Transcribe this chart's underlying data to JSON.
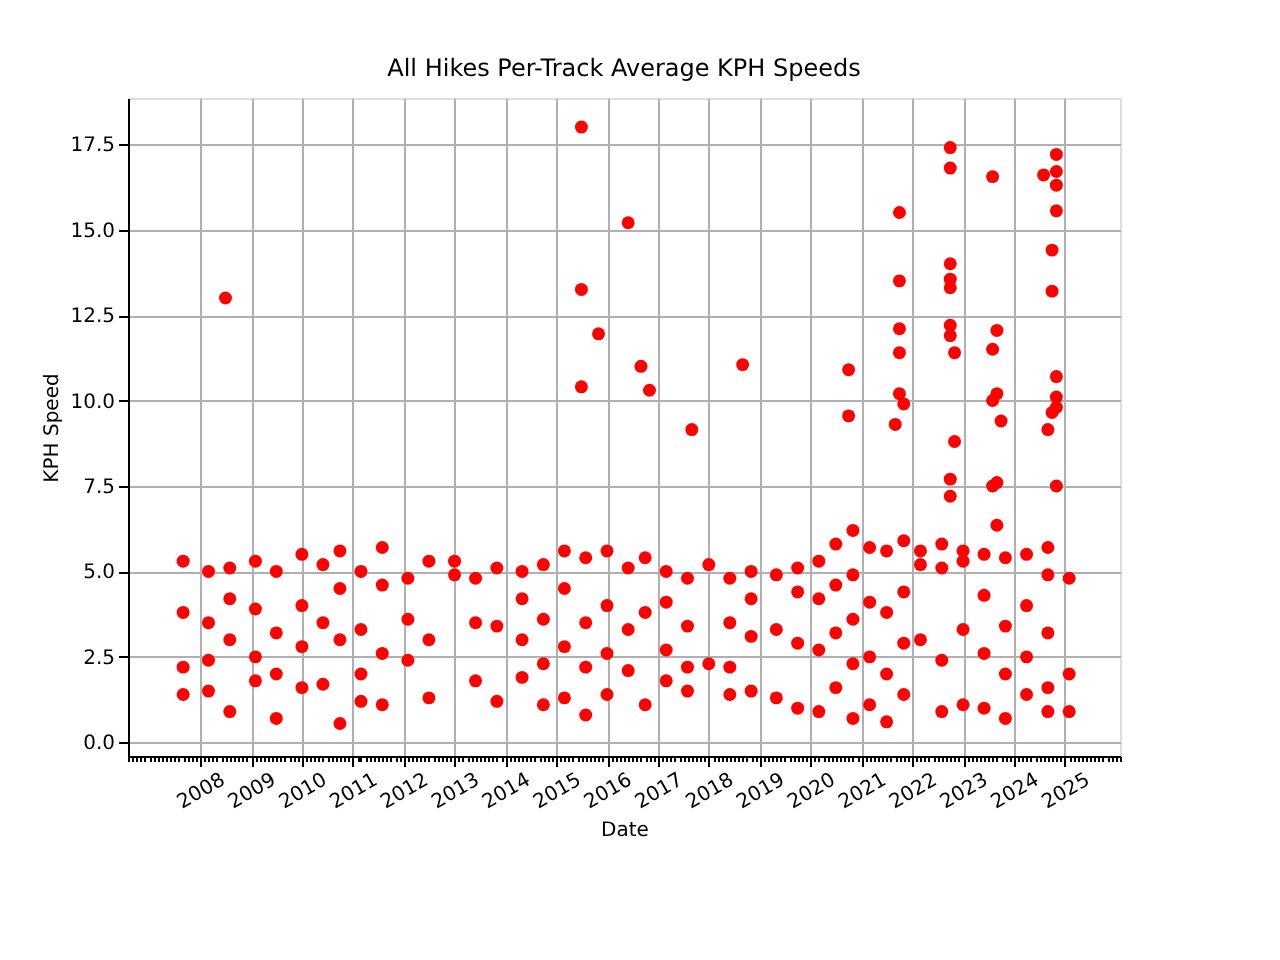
{
  "chart_data": {
    "type": "scatter",
    "title": "All Hikes Per-Track Average KPH Speeds",
    "xlabel": "Date",
    "ylabel": "KPH Speed",
    "series": [
      {
        "color": "#ff0000",
        "marker": "circle",
        "x": [
          "2007-09",
          "2007-09",
          "2007-09",
          "2007-09",
          "2008-03",
          "2008-03",
          "2008-03",
          "2008-03",
          "2008-08",
          "2008-08",
          "2008-08",
          "2008-08",
          "2009-02",
          "2009-02",
          "2009-02",
          "2009-02",
          "2009-07",
          "2009-07",
          "2009-07",
          "2009-07",
          "2010-01",
          "2010-01",
          "2010-01",
          "2010-01",
          "2010-06",
          "2010-06",
          "2010-06",
          "2010-10",
          "2010-10",
          "2010-10",
          "2010-10",
          "2011-03",
          "2011-03",
          "2011-03",
          "2011-03",
          "2011-08",
          "2011-08",
          "2011-08",
          "2011-08",
          "2012-02",
          "2012-02",
          "2012-02",
          "2012-07",
          "2012-07",
          "2012-07",
          "2013-01",
          "2013-01",
          "2013-06",
          "2013-06",
          "2013-06",
          "2013-11",
          "2013-11",
          "2013-11",
          "2014-05",
          "2014-05",
          "2014-05",
          "2014-05",
          "2014-10",
          "2014-10",
          "2014-10",
          "2014-10",
          "2015-03",
          "2015-03",
          "2015-03",
          "2015-03",
          "2015-08",
          "2015-08",
          "2015-08",
          "2015-08",
          "2016-01",
          "2016-01",
          "2016-01",
          "2016-01",
          "2016-06",
          "2016-06",
          "2016-06",
          "2016-10",
          "2016-10",
          "2016-10",
          "2017-03",
          "2017-03",
          "2017-03",
          "2017-03",
          "2017-08",
          "2017-08",
          "2017-08",
          "2017-08",
          "2018-01",
          "2018-01",
          "2018-06",
          "2018-06",
          "2018-06",
          "2018-06",
          "2018-11",
          "2018-11",
          "2018-11",
          "2018-11",
          "2019-05",
          "2019-05",
          "2019-05",
          "2019-10",
          "2019-10",
          "2019-10",
          "2019-10",
          "2020-03",
          "2020-03",
          "2020-03",
          "2020-03",
          "2020-07",
          "2020-07",
          "2020-07",
          "2020-07",
          "2020-11",
          "2020-11",
          "2020-11",
          "2020-11",
          "2020-11",
          "2021-03",
          "2021-03",
          "2021-03",
          "2021-03",
          "2021-07",
          "2021-07",
          "2021-07",
          "2021-07",
          "2021-11",
          "2021-11",
          "2021-11",
          "2021-11",
          "2022-03",
          "2022-03",
          "2022-03",
          "2022-08",
          "2022-08",
          "2022-08",
          "2022-08",
          "2023-01",
          "2023-01",
          "2023-01",
          "2023-01",
          "2023-06",
          "2023-06",
          "2023-06",
          "2023-06",
          "2023-11",
          "2023-11",
          "2023-11",
          "2023-11",
          "2024-04",
          "2024-04",
          "2024-04",
          "2024-04",
          "2024-09",
          "2024-09",
          "2024-09",
          "2024-09",
          "2024-09",
          "2025-02",
          "2025-02",
          "2025-02",
          "2008-07",
          "2015-07",
          "2015-07",
          "2015-07",
          "2015-11",
          "2016-06",
          "2016-09",
          "2016-11",
          "2017-09",
          "2018-09",
          "2020-10",
          "2020-10",
          "2021-10",
          "2021-10",
          "2021-10",
          "2021-10",
          "2021-10",
          "2021-11",
          "2021-09",
          "2022-10",
          "2022-10",
          "2022-10",
          "2022-10",
          "2022-10",
          "2022-10",
          "2022-10",
          "2022-11",
          "2022-11",
          "2022-10",
          "2022-10",
          "2023-08",
          "2023-09",
          "2023-08",
          "2023-09",
          "2023-08",
          "2023-10",
          "2023-09",
          "2023-08",
          "2023-09",
          "2024-08",
          "2024-11",
          "2024-11",
          "2024-11",
          "2024-11",
          "2024-10",
          "2024-10",
          "2024-11",
          "2024-11",
          "2024-11",
          "2024-10",
          "2024-09",
          "2024-11"
        ],
        "values": [
          5.3,
          3.8,
          2.2,
          1.4,
          5.0,
          3.5,
          2.4,
          1.5,
          5.1,
          4.2,
          3.0,
          0.9,
          5.3,
          3.9,
          2.5,
          1.8,
          5.0,
          3.2,
          2.0,
          0.7,
          5.5,
          4.0,
          2.8,
          1.6,
          5.2,
          3.5,
          1.7,
          5.6,
          4.5,
          3.0,
          0.55,
          5.0,
          3.3,
          2.0,
          1.2,
          5.7,
          4.6,
          2.6,
          1.1,
          4.8,
          3.6,
          2.4,
          5.3,
          3.0,
          1.3,
          5.3,
          4.9,
          4.8,
          3.5,
          1.8,
          5.1,
          3.4,
          1.2,
          5.0,
          4.2,
          3.0,
          1.9,
          5.2,
          3.6,
          2.3,
          1.1,
          5.6,
          4.5,
          2.8,
          1.3,
          5.4,
          3.5,
          2.2,
          0.8,
          5.6,
          4.0,
          2.6,
          1.4,
          5.1,
          3.3,
          2.1,
          5.4,
          3.8,
          1.1,
          5.0,
          4.1,
          2.7,
          1.8,
          4.8,
          3.4,
          2.2,
          1.5,
          5.2,
          2.3,
          4.8,
          3.5,
          2.2,
          1.4,
          5.0,
          4.2,
          3.1,
          1.5,
          4.9,
          3.3,
          1.3,
          5.1,
          4.4,
          2.9,
          1.0,
          5.3,
          4.2,
          2.7,
          0.9,
          5.8,
          4.6,
          3.2,
          1.6,
          6.2,
          4.9,
          3.6,
          2.3,
          0.7,
          5.7,
          4.1,
          2.5,
          1.1,
          5.6,
          3.8,
          2.0,
          0.6,
          5.9,
          4.4,
          2.9,
          1.4,
          5.6,
          5.2,
          3.0,
          5.8,
          5.1,
          2.4,
          0.9,
          5.6,
          5.3,
          3.3,
          1.1,
          5.5,
          4.3,
          2.6,
          1.0,
          5.4,
          3.4,
          2.0,
          0.7,
          5.5,
          4.0,
          2.5,
          1.4,
          5.7,
          4.9,
          3.2,
          1.6,
          0.9,
          4.8,
          2.0,
          0.9,
          13.0,
          18.0,
          13.25,
          10.4,
          11.95,
          15.2,
          11.0,
          10.3,
          9.15,
          11.05,
          10.9,
          9.55,
          15.5,
          13.5,
          12.1,
          11.4,
          10.2,
          9.9,
          9.3,
          17.4,
          16.8,
          14.0,
          13.55,
          13.3,
          12.2,
          11.9,
          11.4,
          8.8,
          7.7,
          7.2,
          16.55,
          12.05,
          11.5,
          10.2,
          10.0,
          9.4,
          7.6,
          7.5,
          6.35,
          16.6,
          17.2,
          16.7,
          16.3,
          15.55,
          14.4,
          13.2,
          10.7,
          10.1,
          9.8,
          9.65,
          9.15,
          7.5
        ]
      }
    ],
    "xlim": [
      "2006-08",
      "2026-02"
    ],
    "xticks": [
      "2008",
      "2009",
      "2010",
      "2011",
      "2012",
      "2013",
      "2014",
      "2015",
      "2016",
      "2017",
      "2018",
      "2019",
      "2020",
      "2021",
      "2022",
      "2023",
      "2024",
      "2025"
    ],
    "ylim": [
      -0.4,
      18.85
    ],
    "yticks": [
      {
        "value": 0,
        "label": "0.0"
      },
      2.5,
      {
        "value": 5,
        "label": "5.0"
      },
      7.5,
      {
        "value": 10,
        "label": "10.0"
      },
      12.5,
      {
        "value": 15,
        "label": "15.0"
      },
      17.5
    ],
    "grid": true,
    "legend": false
  }
}
